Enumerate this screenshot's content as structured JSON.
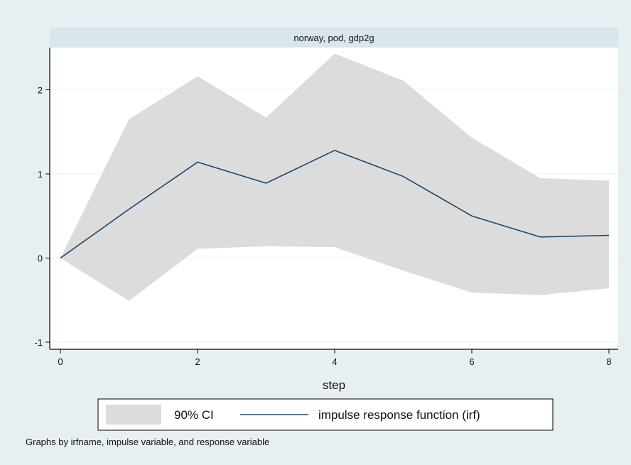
{
  "chart_data": {
    "type": "line",
    "panel_title": "norway, pod, gdp2g",
    "xlabel": "step",
    "ylabel": "",
    "x": [
      0,
      1,
      2,
      3,
      4,
      5,
      6,
      7,
      8
    ],
    "xlim": [
      0,
      8
    ],
    "ylim": [
      -1,
      2.5
    ],
    "xticks": [
      0,
      2,
      4,
      6,
      8
    ],
    "yticks": [
      -1,
      0,
      1,
      2
    ],
    "grid": true,
    "series": [
      {
        "name": "impulse response function (irf)",
        "kind": "line",
        "color": "#1a476f",
        "values": [
          0,
          0.58,
          1.14,
          0.89,
          1.28,
          0.97,
          0.5,
          0.25,
          0.27
        ]
      },
      {
        "name": "90% CI",
        "kind": "band",
        "color": "#dcdcdc",
        "lower": [
          0,
          -0.51,
          0.11,
          0.14,
          0.13,
          -0.15,
          -0.41,
          -0.44,
          -0.36
        ],
        "upper": [
          0,
          1.65,
          2.16,
          1.67,
          2.43,
          2.11,
          1.43,
          0.95,
          0.92
        ]
      }
    ],
    "legend": {
      "position": "bottom",
      "items": [
        "90% CI",
        "impulse response function (irf)"
      ]
    },
    "note": "Graphs by irfname, impulse variable, and response variable"
  },
  "colors": {
    "background": "#e8eff3",
    "plot_background": "#ffffff",
    "title_bar": "#d9e6eb",
    "band": "#dcdcdc",
    "line": "#1a476f",
    "grid": "#eef2f4"
  }
}
